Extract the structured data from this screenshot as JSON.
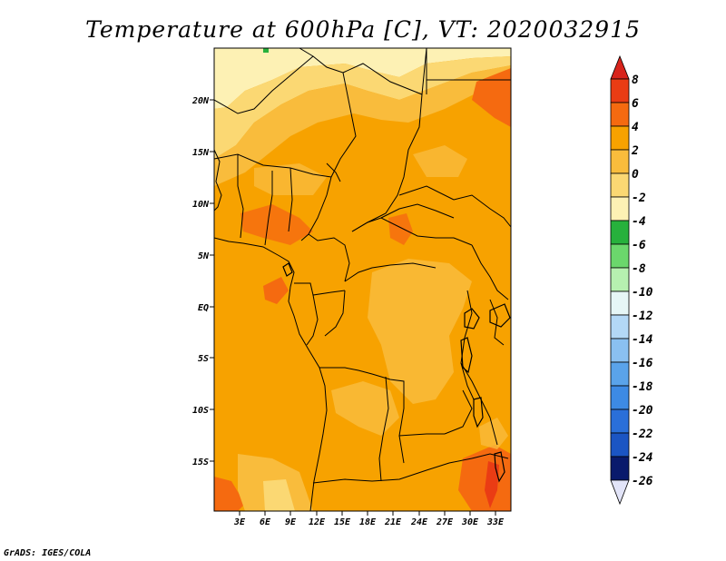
{
  "title": "Temperature at 600hPa [C], VT: 2020032915",
  "credit": "GrADS: IGES/COLA",
  "map": {
    "lat_ticks": [
      "20N",
      "15N",
      "10N",
      "5N",
      "EQ",
      "5S",
      "10S",
      "15S"
    ],
    "lon_ticks": [
      "3E",
      "6E",
      "9E",
      "12E",
      "15E",
      "18E",
      "21E",
      "24E",
      "27E",
      "30E",
      "33E"
    ]
  },
  "colorbar": {
    "labels": [
      "8",
      "6",
      "4",
      "2",
      "0",
      "-2",
      "-4",
      "-6",
      "-8",
      "-10",
      "-12",
      "-14",
      "-16",
      "-18",
      "-20",
      "-22",
      "-24",
      "-26"
    ],
    "colors": {
      "above_8": "#d8241c",
      "6_8": "#ea3c14",
      "4_6": "#f56a10",
      "2_4": "#f7a200",
      "0_2": "#f9bc3c",
      "m2_0": "#fbd873",
      "m4_m2": "#fdf1b4",
      "m6_m4": "#27b13c",
      "m8_m6": "#6bd76c",
      "m10_m8": "#b6f0b0",
      "m12_m10": "#e6f6f6",
      "m14_m12": "#b3d8f6",
      "m16_m14": "#8ac0f1",
      "m18_m16": "#5aa3ea",
      "m20_m18": "#3d8ae4",
      "m22_m20": "#2a6fd9",
      "m24_m22": "#1b55c3",
      "m26_m24": "#0d2f9c",
      "m26_m24_dark": "#091a6c",
      "below_m26": "#e2e4f8"
    }
  }
}
